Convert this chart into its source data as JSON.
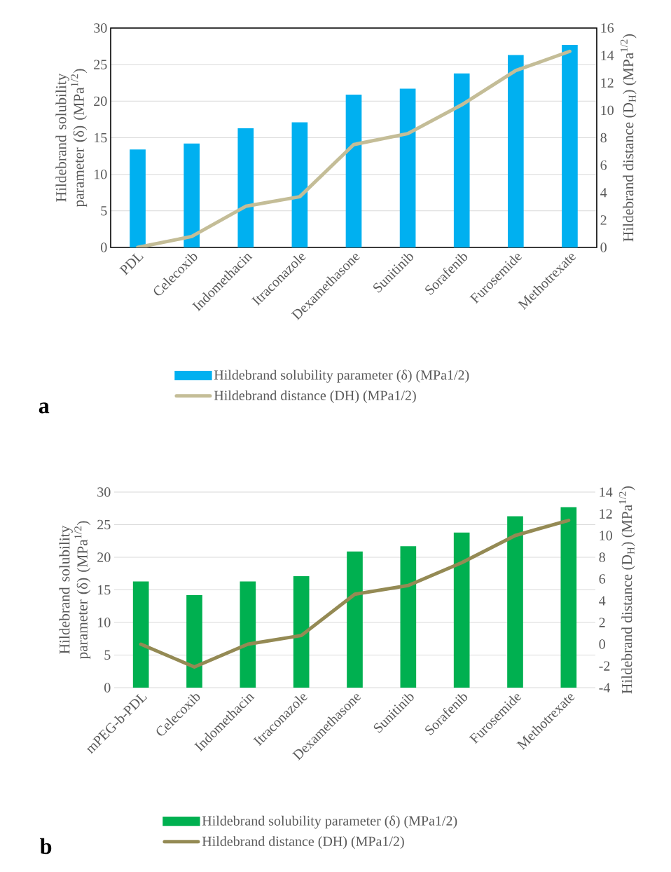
{
  "chart_data": [
    {
      "type": "bar",
      "categories": [
        "PDL",
        "Celecoxib",
        "Indomethacin",
        "Itraconazole",
        "Dexamethasone",
        "Sunitinib",
        "Sorafenib",
        "Furosemide",
        "Methotrexate"
      ],
      "series": [
        {
          "name": "Hildebrand solubility parameter (δ) (MPa1/2)",
          "color": "#00b0f0",
          "values": [
            13.4,
            14.2,
            16.3,
            17.1,
            20.9,
            21.7,
            23.8,
            26.3,
            27.7
          ]
        },
        {
          "name": "Hildebrand distance (DH) (MPa1/2)",
          "type": "line",
          "axis": "y2",
          "color": "#c4bd97",
          "values": [
            0,
            0.8,
            3.0,
            3.7,
            7.5,
            8.3,
            10.4,
            12.9,
            14.3
          ]
        }
      ],
      "ylabel": "Hildebrand solubility parameter (δ) (MPa$^{1/2}$)",
      "y2label": "Hildebrand distance (D$_{H}$) (MPa$^{1/2}$)",
      "ylim": [
        0,
        30
      ],
      "yticks": [
        0,
        5,
        10,
        15,
        20,
        25,
        30
      ],
      "y2lim": [
        0,
        16
      ],
      "y2ticks": [
        0,
        2,
        4,
        6,
        8,
        10,
        12,
        14,
        16
      ],
      "grid": "y",
      "legend": "bottom",
      "annotations": [
        "a"
      ]
    },
    {
      "type": "bar",
      "categories": [
        "mPEG-b-PDL",
        "Celecoxib",
        "Indomethacin",
        "Itraconazole",
        "Dexamethasone",
        "Sunitinib",
        "Sorafenib",
        "Furosemide",
        "Methotrexate"
      ],
      "series": [
        {
          "name": "Hildebrand solubility parameter (δ) (MPa1/2)",
          "color": "#00b050",
          "values": [
            16.3,
            14.2,
            16.3,
            17.1,
            20.9,
            21.7,
            23.8,
            26.3,
            27.7
          ]
        },
        {
          "name": "Hildebrand distance (DH) (MPa1/2)",
          "type": "line",
          "axis": "y2",
          "color": "#948a54",
          "values": [
            0,
            -2.1,
            0,
            0.8,
            4.6,
            5.4,
            7.5,
            10.0,
            11.4
          ]
        }
      ],
      "ylabel": "Hildebrand solubility parameter (δ) (MPa$^{1/2}$)",
      "y2label": "Hildebrand distance (D$_{H}$) (MPa$^{1/2}$)",
      "ylim": [
        0,
        30
      ],
      "yticks": [
        0,
        5,
        10,
        15,
        20,
        25,
        30
      ],
      "y2lim": [
        -4,
        14
      ],
      "y2ticks": [
        -4,
        -2,
        0,
        2,
        4,
        6,
        8,
        10,
        12,
        14
      ],
      "grid": "y",
      "legend": "bottom",
      "annotations": [
        "b"
      ]
    }
  ]
}
